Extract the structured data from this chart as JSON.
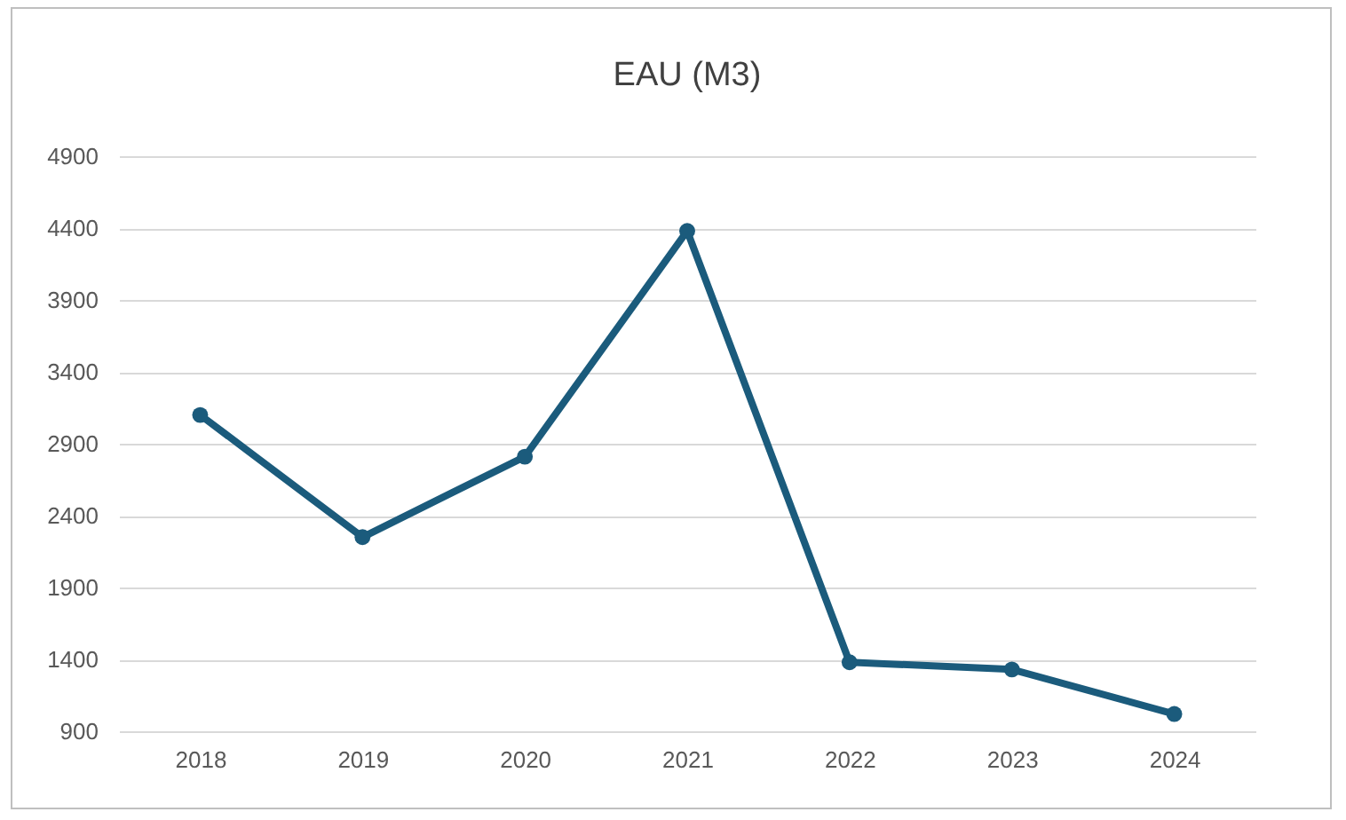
{
  "chart_data": {
    "type": "line",
    "title": "EAU (M3)",
    "categories": [
      "2018",
      "2019",
      "2020",
      "2021",
      "2022",
      "2023",
      "2024"
    ],
    "series": [
      {
        "color": "#1b5b7c",
        "values": [
          3100,
          2250,
          2810,
          4380,
          1380,
          1330,
          1020
        ]
      }
    ],
    "ylim": [
      900,
      4900
    ],
    "yticks": [
      900,
      1400,
      1900,
      2400,
      2900,
      3400,
      3900,
      4400,
      4900
    ],
    "grid": "y",
    "marker": "circle",
    "line_style": "solid",
    "legend": false
  }
}
